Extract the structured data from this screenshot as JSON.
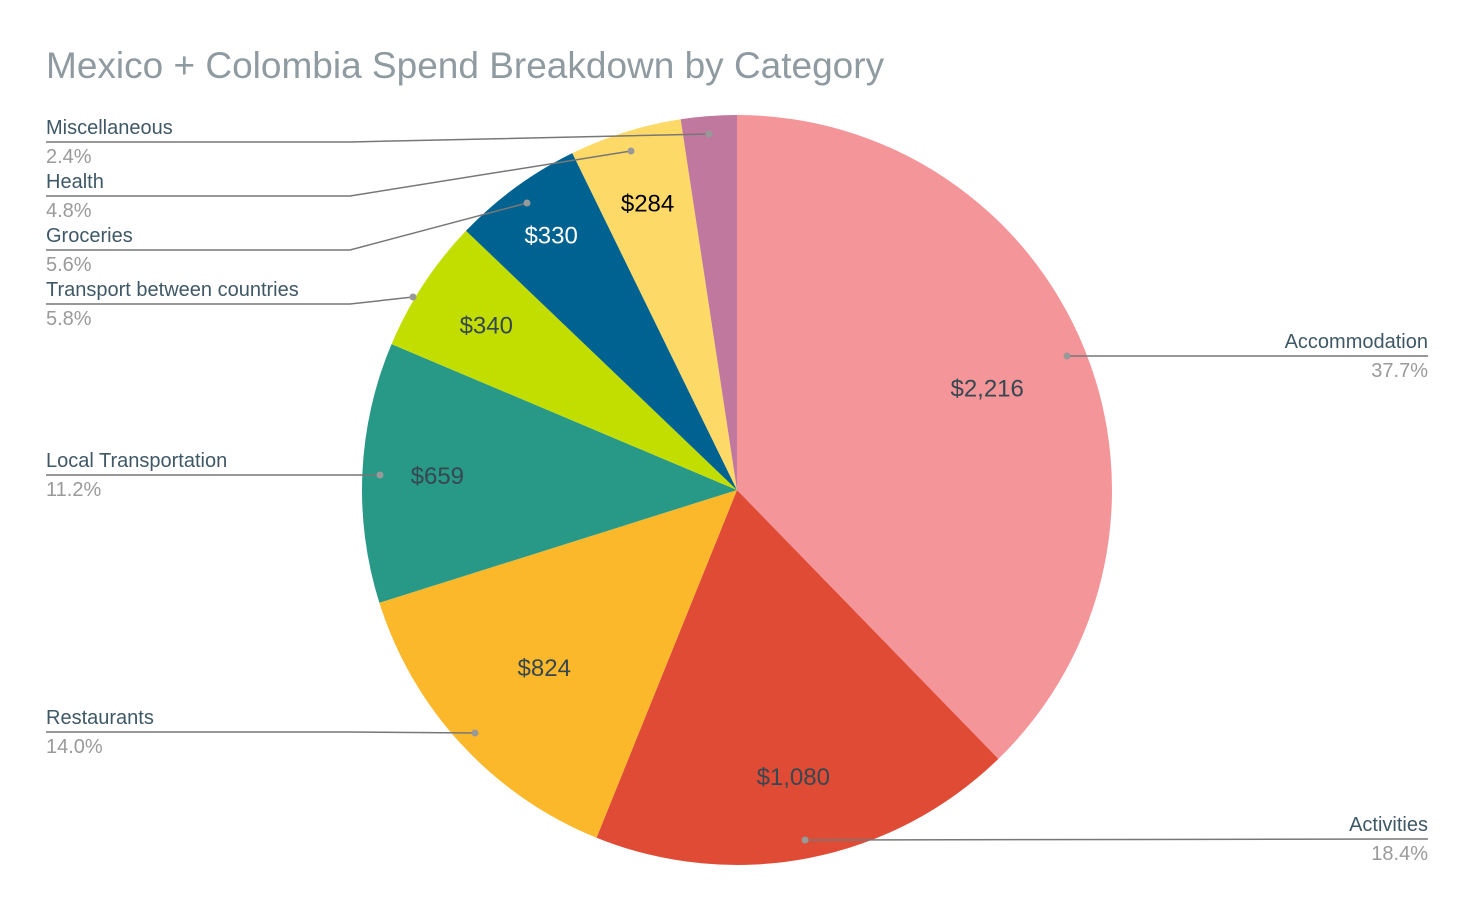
{
  "chart_data": {
    "type": "pie",
    "title": "Mexico + Colombia Spend Breakdown by Category",
    "currency": "$",
    "slices": [
      {
        "name": "Accommodation",
        "value": 2216,
        "value_label": "$2,216",
        "percent": "37.7%",
        "color": "#f4959a",
        "label_color": "#37474f"
      },
      {
        "name": "Activities",
        "value": 1080,
        "value_label": "$1,080",
        "percent": "18.4%",
        "color": "#e04b36",
        "label_color": "#37474f"
      },
      {
        "name": "Restaurants",
        "value": 824,
        "value_label": "$824",
        "percent": "14.0%",
        "color": "#fbb82a",
        "label_color": "#37474f"
      },
      {
        "name": "Local Transportation",
        "value": 659,
        "value_label": "$659",
        "percent": "11.2%",
        "color": "#289887",
        "label_color": "#37474f"
      },
      {
        "name": "Transport between countries",
        "value": 340,
        "value_label": "$340",
        "percent": "5.8%",
        "color": "#c1de00",
        "label_color": "#37474f"
      },
      {
        "name": "Groceries",
        "value": 330,
        "value_label": "$330",
        "percent": "5.6%",
        "color": "#006290",
        "label_color": "#ffffff"
      },
      {
        "name": "Health",
        "value": 284,
        "value_label": "$284",
        "percent": "4.8%",
        "color": "#fdd967",
        "label_color": "#000000"
      },
      {
        "name": "Miscellaneous",
        "value": 141,
        "value_label": null,
        "percent": "2.4%",
        "color": "#c0789e",
        "label_color": "#37474f"
      }
    ],
    "legend": "none (leader-line labels)"
  }
}
